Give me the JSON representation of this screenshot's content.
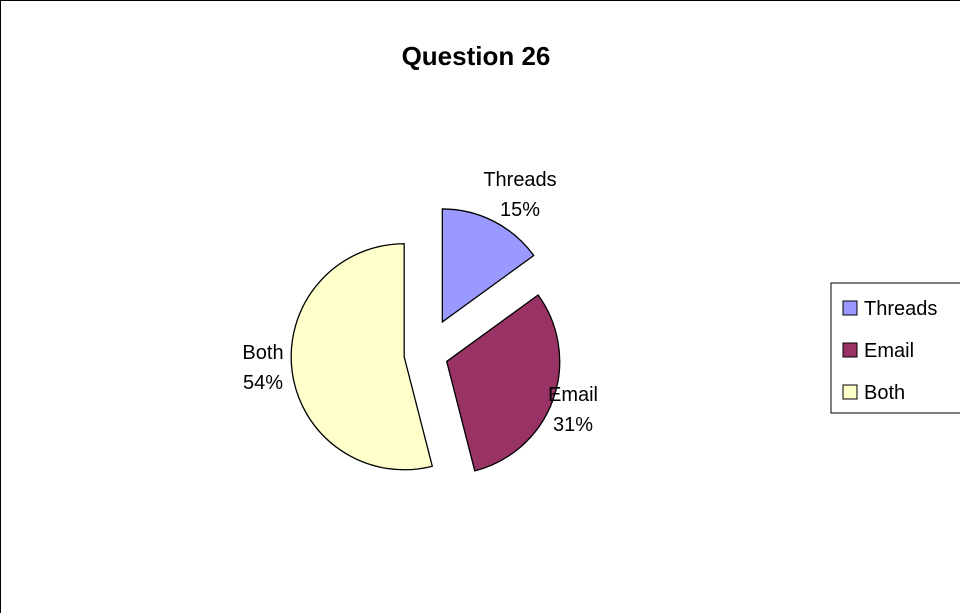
{
  "chart_data": {
    "type": "pie",
    "title": "Question 26",
    "exploded": true,
    "legend_position": "right",
    "series": [
      {
        "values": [
          15,
          31,
          54
        ]
      }
    ],
    "categories": [
      "Threads",
      "Email",
      "Both"
    ],
    "labels": [
      {
        "name": "Threads",
        "percent": "15%"
      },
      {
        "name": "Email",
        "percent": "31%"
      },
      {
        "name": "Both",
        "percent": "54%"
      }
    ],
    "colors": [
      "#9999ff",
      "#993366",
      "#ffffcc"
    ]
  }
}
